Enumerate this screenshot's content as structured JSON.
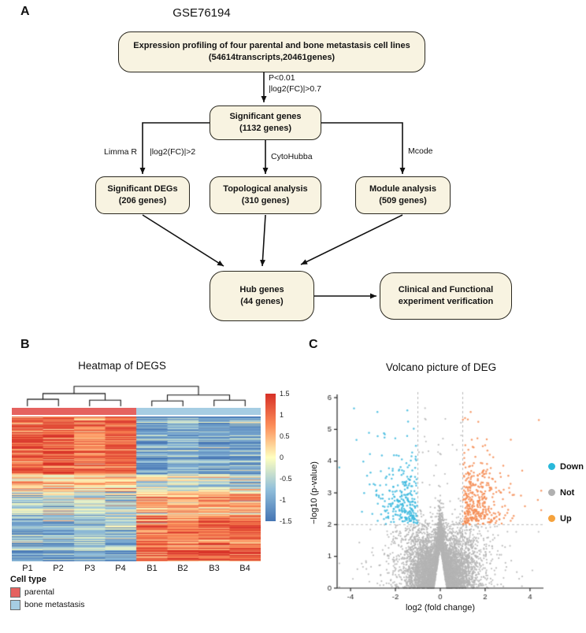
{
  "panels": {
    "a_label": "A",
    "b_label": "B",
    "c_label": "C"
  },
  "flowchart": {
    "title": "GSE76194",
    "box_fill": "#f8f3e1",
    "boxes": {
      "profiling": {
        "line1": "Expression profiling of four parental and bone metastasis cell lines",
        "line2": "(54614transcripts,20461genes)"
      },
      "significant": {
        "line1": "Significant genes",
        "line2": "(1132 genes)"
      },
      "degs": {
        "line1": "Significant DEGs",
        "line2": "(206 genes)"
      },
      "topological": {
        "line1": "Topological analysis",
        "line2": "(310 genes)"
      },
      "module": {
        "line1": "Module analysis",
        "line2": "(509 genes)"
      },
      "hub": {
        "line1": "Hub genes",
        "line2": "(44 genes)"
      },
      "clinical": {
        "line1": "Clinical and Functional",
        "line2": "experiment verification"
      }
    },
    "edge_labels": {
      "pvalue": "P<0.01",
      "fc07": "|log2(FC)|>0.7",
      "limma": "Limma R",
      "fc2": "|log2(FC)|>2",
      "cytohubba": "CytoHubba",
      "mcode": "Mcode"
    }
  },
  "chart_data": [
    {
      "type": "heatmap",
      "title": "Heatmap of DEGS",
      "columns": [
        "P1",
        "P2",
        "P3",
        "P4",
        "B1",
        "B2",
        "B3",
        "B4"
      ],
      "n_rows": 206,
      "value_range": [
        -1.5,
        1.5
      ],
      "colorbar_ticks": [
        "1.5",
        "1",
        "0.5",
        "0",
        "-0.5",
        "-1",
        "-1.5"
      ],
      "colormap": [
        [
          -1.5,
          "#4575b4"
        ],
        [
          -0.75,
          "#91bfdb"
        ],
        [
          0,
          "#ffffbf"
        ],
        [
          0.75,
          "#fc8d59"
        ],
        [
          1.5,
          "#d73027"
        ]
      ],
      "legend_title": "Cell type",
      "column_groups": [
        {
          "name": "parental",
          "color": "#e5625f",
          "columns": [
            "P1",
            "P2",
            "P3",
            "P4"
          ]
        },
        {
          "name": "bone metastasis",
          "color": "#a6cde3",
          "columns": [
            "B1",
            "B2",
            "B3",
            "B4"
          ]
        }
      ],
      "expression_blocks": [
        {
          "until": 0.4,
          "parental": 1.1,
          "bone": -1.05
        },
        {
          "until": 0.52,
          "parental": 0.35,
          "bone": -0.3
        },
        {
          "until": 0.7,
          "parental": -0.5,
          "bone": 0.55
        },
        {
          "until": 0.92,
          "parental": -0.75,
          "bone": 0.95
        },
        {
          "until": 1.0,
          "parental": -1.2,
          "bone": 1.25
        }
      ],
      "column_gain": [
        1.0,
        1.05,
        0.75,
        0.95,
        1.0,
        0.9,
        1.05,
        1.1
      ],
      "noise": {
        "row": 0.3,
        "cell": 0.35
      },
      "seed": 7,
      "dendrogram_merges": [
        [
          0,
          1,
          0.34
        ],
        [
          2,
          3,
          0.3
        ],
        [
          -1,
          -2,
          0.62
        ],
        [
          4,
          5,
          0.26
        ],
        [
          6,
          7,
          0.3
        ],
        [
          -4,
          -5,
          0.55
        ],
        [
          -3,
          -6,
          0.97
        ]
      ]
    },
    {
      "type": "scatter",
      "title": "Volcano picture of DEG",
      "xlabel": "log2 (fold change)",
      "ylabel": "−log10 (p-value)",
      "xlim": [
        -4.6,
        4.6
      ],
      "ylim": [
        0,
        6.2
      ],
      "xticks": [
        -4,
        -2,
        0,
        2,
        4
      ],
      "yticks": [
        0,
        1,
        2,
        3,
        4,
        5,
        6
      ],
      "thresholds": {
        "log2fc": [
          -1,
          1
        ],
        "neg_log10_p": 2
      },
      "legend": [
        {
          "label": "Down",
          "color": "#29b8da"
        },
        {
          "label": "Not",
          "color": "#b0b0b0"
        },
        {
          "label": "Up",
          "color": "#f5a23c"
        }
      ],
      "point_colors": {
        "down": "#3cb9de",
        "not": "#b4b4b4",
        "up": "#f58c54"
      },
      "seed": 20461,
      "counts": {
        "background": 5200,
        "mid": 900,
        "significant": 540,
        "high": 70
      },
      "notch": {
        "top": 1.3,
        "slope": 4.5
      }
    }
  ]
}
